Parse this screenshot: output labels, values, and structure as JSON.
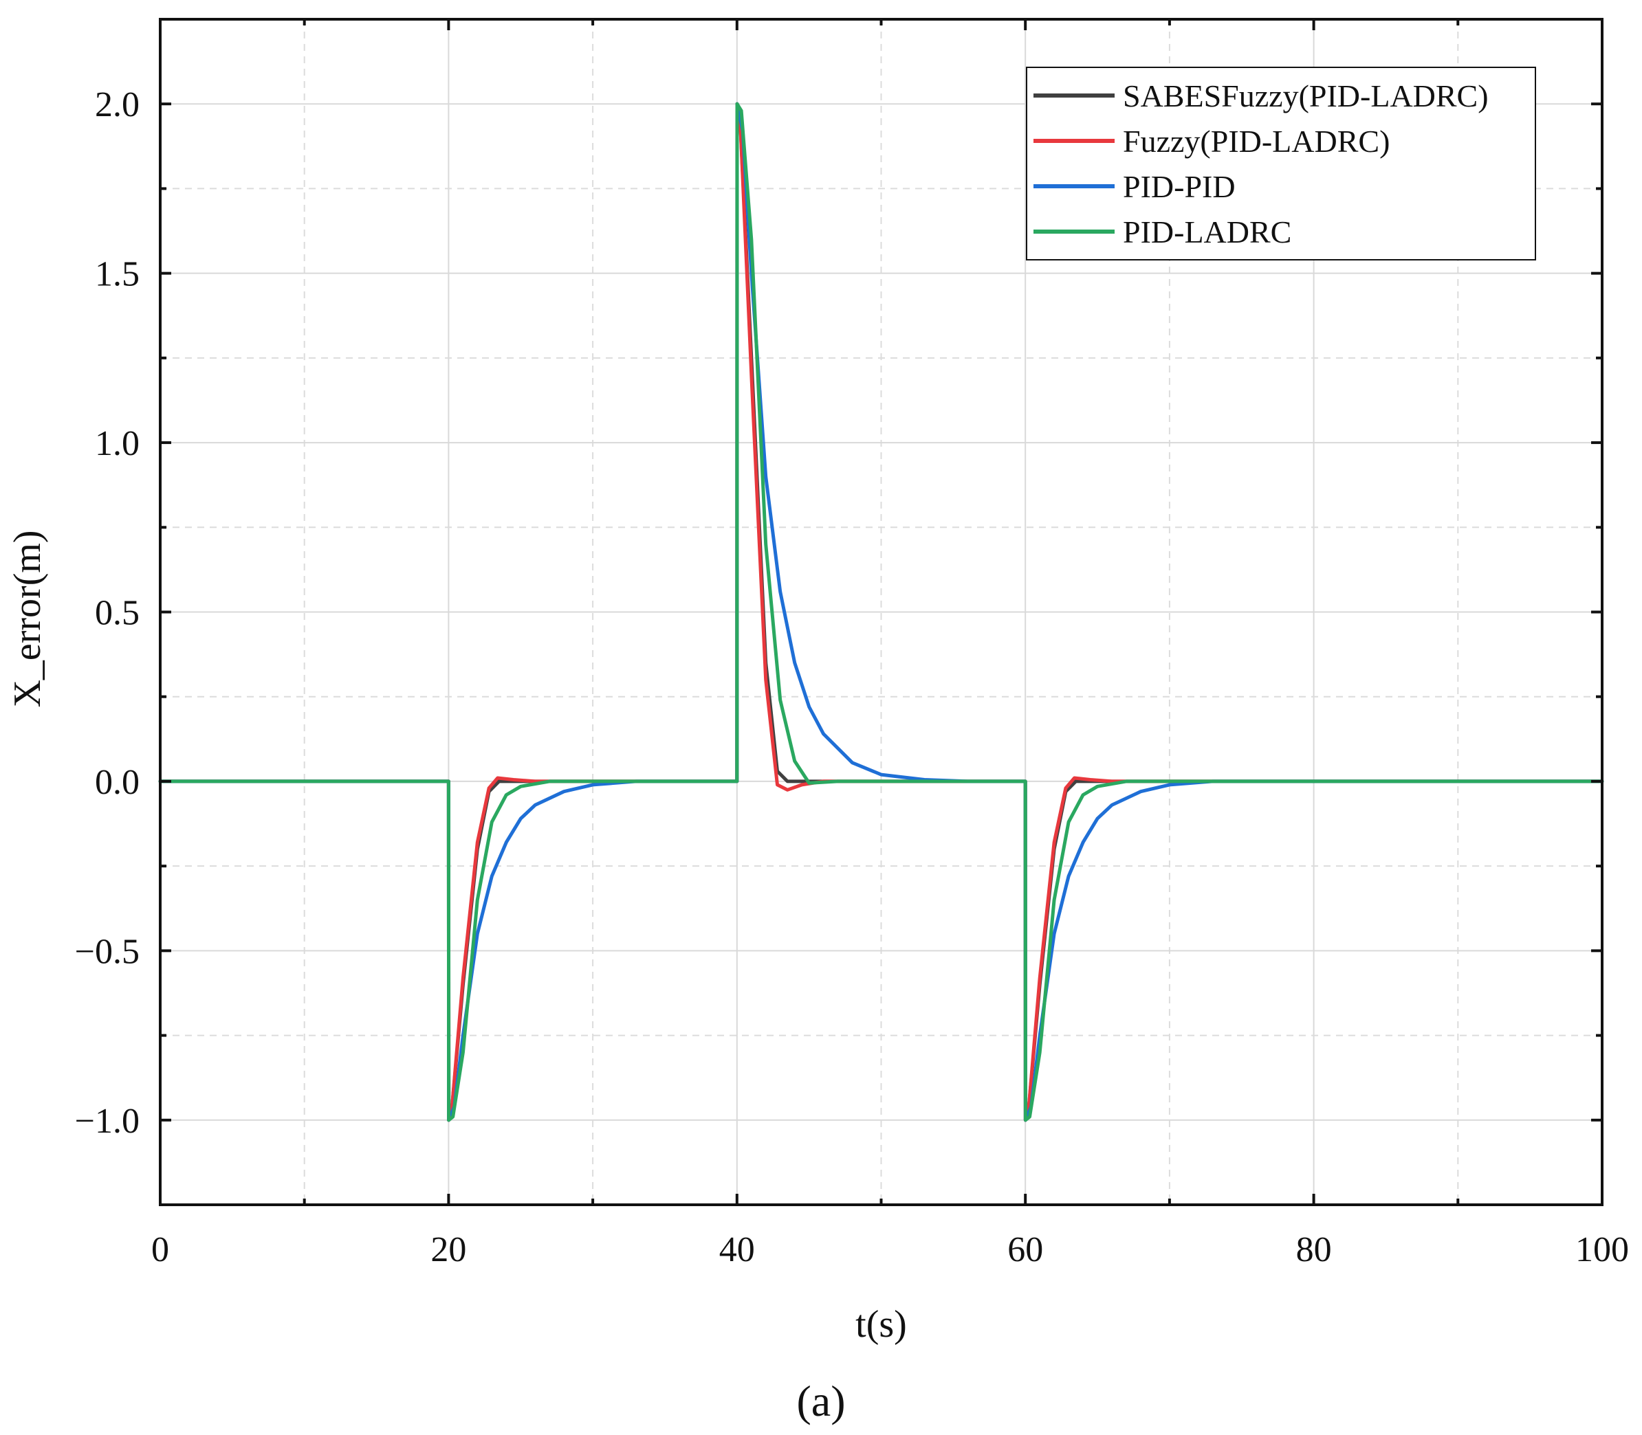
{
  "chart_data": {
    "type": "line",
    "xlabel": "t(s)",
    "ylabel": "X_error(m)",
    "xlim": [
      0,
      100
    ],
    "ylim": [
      -1.25,
      2.25
    ],
    "x_ticks": [
      0,
      20,
      40,
      60,
      80,
      100
    ],
    "x_tick_labels": [
      "0",
      "20",
      "40",
      "60",
      "80",
      "100"
    ],
    "y_ticks": [
      -1.0,
      -0.5,
      0.0,
      0.5,
      1.0,
      1.5,
      2.0
    ],
    "y_tick_labels": [
      "−1.0",
      "−0.5",
      "0.0",
      "0.5",
      "1.0",
      "1.5",
      "2.0"
    ],
    "grid": true,
    "legend_position": "top-right",
    "subfigure_label": "(a)",
    "series": [
      {
        "name": "SABESFuzzy(PID-LADRC)",
        "color": "#404040",
        "x": [
          0,
          20,
          20.01,
          20.2,
          21,
          22,
          22.8,
          23.5,
          25,
          30,
          40,
          40.01,
          40.2,
          41,
          42,
          42.8,
          43.5,
          45,
          50,
          60,
          60.01,
          60.2,
          61,
          62,
          62.8,
          63.5,
          65,
          70,
          100
        ],
        "y": [
          0,
          0,
          -1,
          -0.98,
          -0.6,
          -0.2,
          -0.03,
          0.0,
          0.0,
          0.0,
          0,
          2,
          1.97,
          1.25,
          0.35,
          0.03,
          0.0,
          0.0,
          0.0,
          0,
          -1,
          -0.98,
          -0.6,
          -0.2,
          -0.03,
          0.0,
          0.0,
          0.0,
          0
        ]
      },
      {
        "name": "Fuzzy(PID-LADRC)",
        "color": "#e8383d",
        "x": [
          0,
          20,
          20.01,
          20.2,
          21,
          22,
          22.8,
          23.4,
          24.5,
          26,
          30,
          40,
          40.01,
          40.2,
          41,
          42,
          42.8,
          43.5,
          44.5,
          46,
          50,
          60,
          60.01,
          60.2,
          61,
          62,
          62.8,
          63.4,
          64.5,
          66,
          70,
          100
        ],
        "y": [
          0,
          0,
          -1,
          -0.98,
          -0.58,
          -0.18,
          -0.02,
          0.01,
          0.005,
          0.0,
          0.0,
          0,
          2,
          1.97,
          1.2,
          0.3,
          -0.01,
          -0.025,
          -0.01,
          0.0,
          0.0,
          0,
          -1,
          -0.98,
          -0.58,
          -0.18,
          -0.02,
          0.01,
          0.005,
          0.0,
          0.0,
          0
        ]
      },
      {
        "name": "PID-PID",
        "color": "#1f6fd6",
        "x": [
          0,
          20,
          20.01,
          20.4,
          21,
          22,
          23,
          24,
          25,
          26,
          28,
          30,
          33,
          36,
          40,
          40.01,
          40.4,
          41,
          42,
          43,
          44,
          45,
          46,
          48,
          50,
          53,
          56,
          60,
          60.01,
          60.4,
          61,
          62,
          63,
          64,
          65,
          66,
          68,
          70,
          73,
          76,
          100
        ],
        "y": [
          0,
          0,
          -1,
          -0.96,
          -0.75,
          -0.45,
          -0.28,
          -0.18,
          -0.11,
          -0.07,
          -0.03,
          -0.01,
          0.0,
          0.0,
          0,
          2,
          1.92,
          1.5,
          0.9,
          0.56,
          0.35,
          0.22,
          0.14,
          0.055,
          0.02,
          0.005,
          0.0,
          0,
          -1,
          -0.96,
          -0.75,
          -0.45,
          -0.28,
          -0.18,
          -0.11,
          -0.07,
          -0.03,
          -0.01,
          0.0,
          0.0,
          0
        ]
      },
      {
        "name": "PID-LADRC",
        "color": "#2aa860",
        "x": [
          0,
          20,
          20.01,
          20.3,
          21,
          22,
          23,
          24,
          25,
          27,
          30,
          40,
          40.01,
          40.3,
          41,
          42,
          43,
          44,
          45,
          47,
          50,
          60,
          60.01,
          60.3,
          61,
          62,
          63,
          64,
          65,
          67,
          70,
          100
        ],
        "y": [
          0,
          0,
          -1,
          -0.99,
          -0.8,
          -0.35,
          -0.12,
          -0.04,
          -0.015,
          0.0,
          0.0,
          0,
          2,
          1.98,
          1.6,
          0.7,
          0.24,
          0.06,
          -0.005,
          0.0,
          0.0,
          0,
          -1,
          -0.99,
          -0.8,
          -0.35,
          -0.12,
          -0.04,
          -0.015,
          0.0,
          0.0,
          0
        ]
      }
    ]
  }
}
